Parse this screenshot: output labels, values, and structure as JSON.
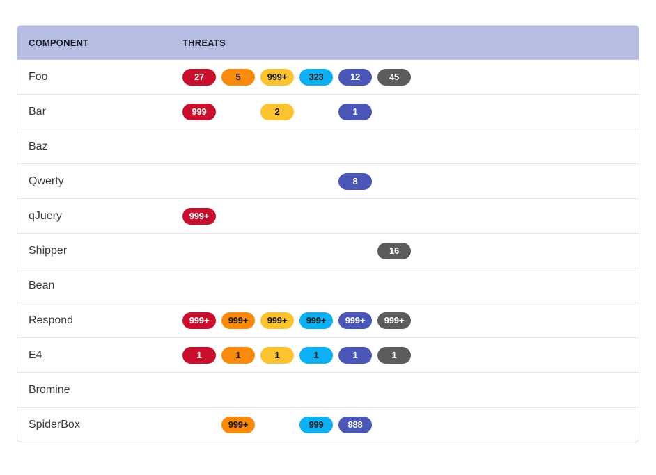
{
  "header": {
    "component_label": "COMPONENT",
    "threats_label": "THREATS"
  },
  "severity_colors": {
    "critical": {
      "bg": "#c8102e",
      "fg": "#ffffff"
    },
    "high": {
      "bg": "#f98a0c",
      "fg": "#1a1a1a"
    },
    "medium": {
      "bg": "#fcc330",
      "fg": "#1a1a1a"
    },
    "low": {
      "bg": "#0db0f2",
      "fg": "#1a1a1a"
    },
    "info": {
      "bg": "#4a56b8",
      "fg": "#ffffff"
    },
    "unknown": {
      "bg": "#5c5c5c",
      "fg": "#ffffff"
    }
  },
  "severity_order": [
    "critical",
    "high",
    "medium",
    "low",
    "info",
    "unknown"
  ],
  "rows": [
    {
      "name": "Foo",
      "threats": {
        "critical": "27",
        "high": "5",
        "medium": "999+",
        "low": "323",
        "info": "12",
        "unknown": "45"
      }
    },
    {
      "name": "Bar",
      "threats": {
        "critical": "999",
        "medium": "2",
        "info": "1"
      }
    },
    {
      "name": "Baz",
      "threats": {}
    },
    {
      "name": "Qwerty",
      "threats": {
        "info": "8"
      }
    },
    {
      "name": "qJuery",
      "threats": {
        "critical": "999+"
      }
    },
    {
      "name": "Shipper",
      "threats": {
        "unknown": "16"
      }
    },
    {
      "name": "Bean",
      "threats": {}
    },
    {
      "name": "Respond",
      "threats": {
        "critical": "999+",
        "high": "999+",
        "medium": "999+",
        "low": "999+",
        "info": "999+",
        "unknown": "999+"
      }
    },
    {
      "name": "E4",
      "threats": {
        "critical": "1",
        "high": "1",
        "medium": "1",
        "low": "1",
        "info": "1",
        "unknown": "1"
      }
    },
    {
      "name": "Bromine",
      "threats": {}
    },
    {
      "name": "SpiderBox",
      "threats": {
        "high": "999+",
        "low": "999",
        "info": "888"
      }
    }
  ]
}
